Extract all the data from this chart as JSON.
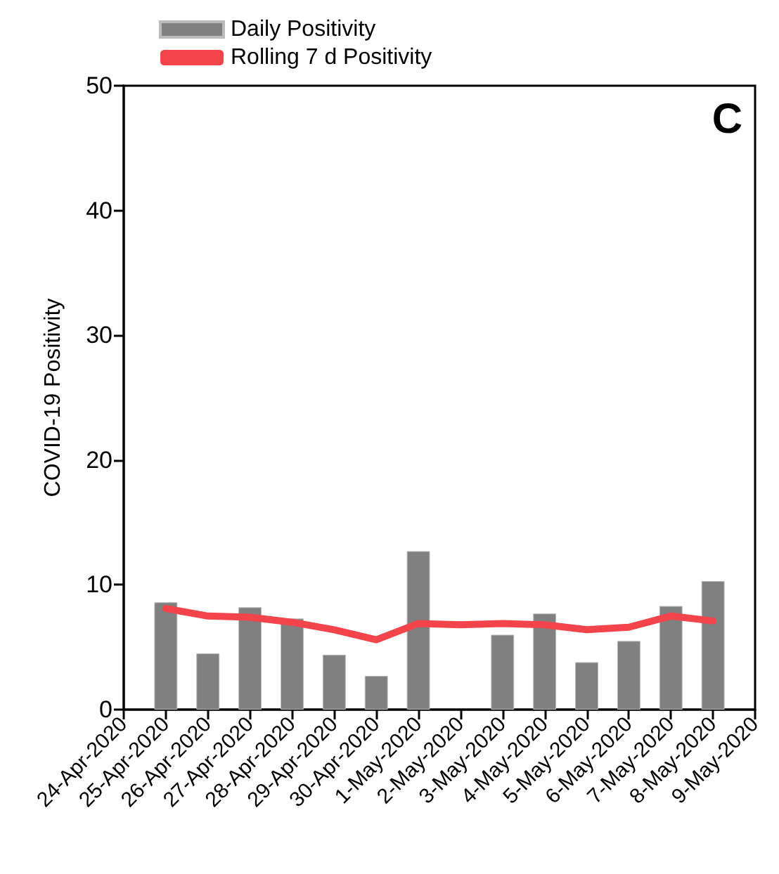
{
  "chart_data": {
    "type": "bar",
    "ylabel": "COVID-19 Positivity",
    "categories": [
      "24-Apr-2020",
      "25-Apr-2020",
      "26-Apr-2020",
      "27-Apr-2020",
      "28-Apr-2020",
      "29-Apr-2020",
      "30-Apr-2020",
      "1-May-2020",
      "2-May-2020",
      "3-May-2020",
      "4-May-2020",
      "5-May-2020",
      "6-May-2020",
      "7-May-2020",
      "8-May-2020",
      "9-May-2020"
    ],
    "series": [
      {
        "name": "Daily Positivity",
        "color": "#808080",
        "values": [
          null,
          8.6,
          4.5,
          8.2,
          7.3,
          4.4,
          2.7,
          12.7,
          null,
          6.0,
          7.7,
          3.8,
          5.5,
          8.3,
          10.3,
          null
        ]
      },
      {
        "name": "Rolling 7 d Positivity",
        "type": "line",
        "color": "#f2444a",
        "values": [
          null,
          8.1,
          7.5,
          7.4,
          7.0,
          6.4,
          5.6,
          6.9,
          6.8,
          6.9,
          6.8,
          6.4,
          6.6,
          7.5,
          7.1,
          null
        ]
      }
    ],
    "ylim": [
      0,
      50
    ],
    "yticks": [
      0,
      10,
      20,
      30,
      40,
      50
    ],
    "grid": false,
    "legend": "top left",
    "marker": "none",
    "line_style": "solid",
    "annotations": [
      "C"
    ]
  }
}
